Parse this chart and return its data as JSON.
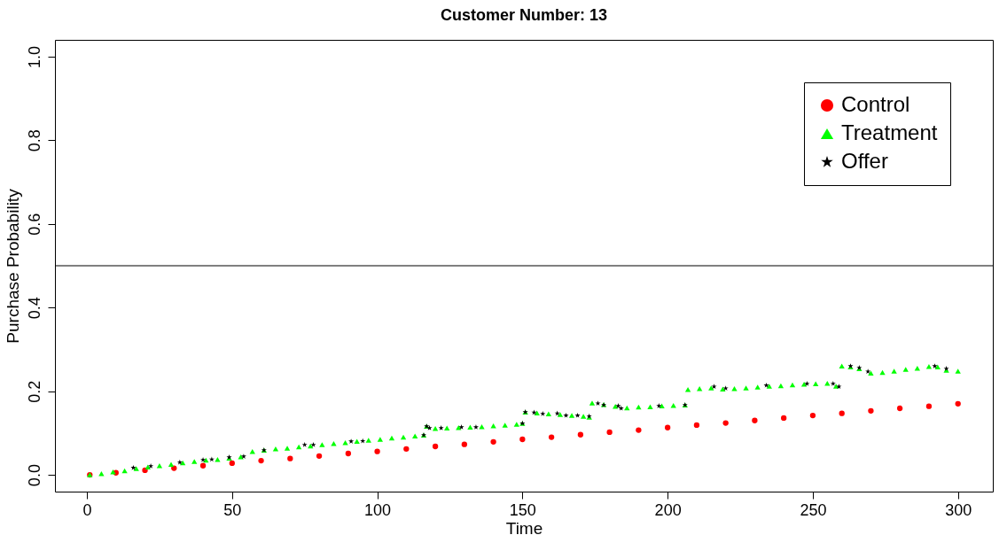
{
  "chart_data": {
    "type": "scatter",
    "title": "Customer Number: 13",
    "xlabel": "Time",
    "ylabel": "Purchase Probability",
    "xlim": [
      -11,
      312
    ],
    "xticks": [
      0,
      50,
      100,
      150,
      200,
      250,
      300
    ],
    "ylim": [
      -0.04,
      1.04
    ],
    "yticks": [
      {
        "value": 0,
        "label": "0.0"
      },
      {
        "value": 0.2,
        "label": "0.2"
      },
      {
        "value": 0.4,
        "label": "0.4"
      },
      {
        "value": 0.6,
        "label": "0.6"
      },
      {
        "value": 0.8,
        "label": "0.8"
      },
      {
        "value": 1,
        "label": "1.0"
      }
    ],
    "legend": "top right",
    "ref_lines": [
      {
        "axis": "y",
        "value": 0.5,
        "color": "#000000"
      }
    ],
    "series": [
      {
        "name": "Control",
        "color": "#ff0000",
        "marker": "circle",
        "x": [
          1,
          10,
          20,
          30,
          40,
          50,
          60,
          70,
          80,
          90,
          100,
          110,
          120,
          130,
          140,
          150,
          160,
          170,
          180,
          190,
          200,
          210,
          220,
          230,
          240,
          250,
          260,
          270,
          280,
          290,
          300
        ],
        "values": [
          0,
          0.005,
          0.011,
          0.016,
          0.022,
          0.028,
          0.034,
          0.039,
          0.045,
          0.051,
          0.056,
          0.062,
          0.068,
          0.073,
          0.079,
          0.085,
          0.09,
          0.096,
          0.102,
          0.107,
          0.113,
          0.119,
          0.124,
          0.13,
          0.136,
          0.142,
          0.147,
          0.153,
          0.159,
          0.164,
          0.17
        ]
      },
      {
        "name": "Treatment",
        "color": "#00ff00",
        "marker": "triangle",
        "x": [
          1,
          5,
          9,
          13,
          17,
          21,
          25,
          29,
          33,
          37,
          41,
          45,
          49,
          53,
          57,
          61,
          65,
          69,
          73,
          77,
          81,
          85,
          89,
          93,
          97,
          101,
          105,
          109,
          113,
          116,
          117,
          120,
          124,
          128,
          132,
          136,
          140,
          144,
          148,
          150,
          151,
          155,
          159,
          163,
          167,
          171,
          173,
          174,
          178,
          182,
          186,
          190,
          194,
          198,
          202,
          206,
          207,
          211,
          215,
          219,
          223,
          227,
          231,
          235,
          239,
          243,
          247,
          251,
          255,
          258,
          260,
          263,
          266,
          270,
          274,
          278,
          282,
          286,
          290,
          293,
          296,
          300
        ],
        "values": [
          0,
          0.003,
          0.007,
          0.01,
          0.015,
          0.019,
          0.022,
          0.025,
          0.029,
          0.032,
          0.035,
          0.037,
          0.04,
          0.043,
          0.056,
          0.059,
          0.062,
          0.064,
          0.067,
          0.069,
          0.072,
          0.075,
          0.077,
          0.08,
          0.083,
          0.085,
          0.088,
          0.09,
          0.093,
          0.095,
          0.116,
          0.111,
          0.112,
          0.113,
          0.114,
          0.115,
          0.117,
          0.119,
          0.121,
          0.123,
          0.15,
          0.148,
          0.146,
          0.144,
          0.142,
          0.14,
          0.138,
          0.172,
          0.168,
          0.164,
          0.16,
          0.162,
          0.163,
          0.165,
          0.166,
          0.167,
          0.204,
          0.206,
          0.208,
          0.205,
          0.206,
          0.208,
          0.21,
          0.212,
          0.213,
          0.215,
          0.217,
          0.218,
          0.219,
          0.212,
          0.26,
          0.258,
          0.254,
          0.243,
          0.245,
          0.248,
          0.252,
          0.255,
          0.259,
          0.258,
          0.25,
          0.248
        ]
      },
      {
        "name": "Offer",
        "color": "#000000",
        "marker": "star",
        "x": [
          16,
          22,
          32,
          40,
          43,
          49,
          54,
          61,
          75,
          78,
          91,
          95,
          116,
          117,
          118,
          122,
          129,
          134,
          150,
          151,
          154,
          157,
          162,
          165,
          169,
          173,
          176,
          178,
          183,
          184,
          197,
          206,
          216,
          220,
          234,
          248,
          257,
          259,
          263,
          266,
          269,
          292,
          296
        ],
        "values": [
          0.017,
          0.021,
          0.03,
          0.036,
          0.037,
          0.042,
          0.044,
          0.059,
          0.072,
          0.072,
          0.08,
          0.081,
          0.095,
          0.116,
          0.112,
          0.112,
          0.114,
          0.114,
          0.123,
          0.15,
          0.149,
          0.146,
          0.147,
          0.142,
          0.142,
          0.14,
          0.171,
          0.167,
          0.165,
          0.159,
          0.165,
          0.167,
          0.211,
          0.207,
          0.214,
          0.218,
          0.218,
          0.211,
          0.26,
          0.256,
          0.247,
          0.26,
          0.254
        ]
      }
    ]
  }
}
